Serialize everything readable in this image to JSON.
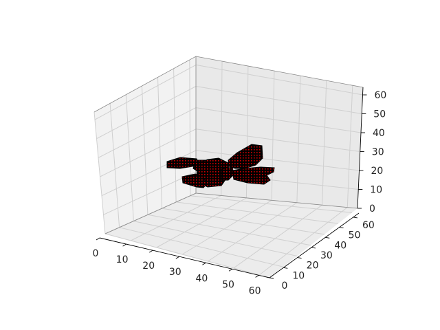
{
  "chart_data": {
    "type": "voxel-3d",
    "title": "",
    "xlabel": "",
    "ylabel": "",
    "zlabel": "",
    "xlim": [
      0,
      64
    ],
    "ylim": [
      0,
      64
    ],
    "zlim": [
      0,
      64
    ],
    "x_ticks": [
      "0",
      "10",
      "20",
      "30",
      "40",
      "50",
      "60"
    ],
    "y_ticks": [
      "0",
      "10",
      "20",
      "30",
      "40",
      "50",
      "60"
    ],
    "z_ticks": [
      "0",
      "10",
      "20",
      "30",
      "40",
      "50",
      "60"
    ],
    "grid": true,
    "object": "airplane",
    "voxel_color": "#000000",
    "voxel_edge_color": "#cc0000",
    "pane_colors": [
      "#f2f2f2",
      "#e9e9e9",
      "#ececec"
    ]
  }
}
